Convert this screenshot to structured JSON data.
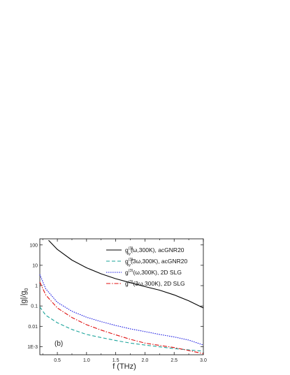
{
  "chart_data": {
    "type": "line",
    "panel_label": "(b)",
    "xlabel": "f (THz)",
    "ylabel": "|g|/g",
    "ylabel_subscript": "0",
    "xlim": [
      0.2,
      3.0
    ],
    "ylim": [
      0.0004,
      200
    ],
    "yscale": "log",
    "grid": false,
    "legend_position": "top-right",
    "x_ticks": [
      0.5,
      1.0,
      1.5,
      2.0,
      2.5,
      3.0
    ],
    "x_tick_labels": [
      "0.5",
      "1.0",
      "1.5",
      "2.0",
      "2.5",
      "3.0"
    ],
    "y_ticks": [
      0.001,
      0.01,
      0.1,
      1,
      10,
      100
    ],
    "y_tick_labels": [
      "1E-3",
      "0.01",
      "0.1",
      "1",
      "10",
      "100"
    ],
    "series": [
      {
        "legend": {
          "main": "g",
          "sup": "(3)",
          "sub": "xy",
          "rest": "(ω,300K), acGNR20"
        },
        "color": "#000000",
        "dash": "",
        "x": [
          0.35,
          0.5,
          0.75,
          1.0,
          1.25,
          1.5,
          1.75,
          2.0,
          2.25,
          2.5,
          2.75,
          3.0
        ],
        "values": [
          170,
          60,
          18,
          7.5,
          3.8,
          2.2,
          1.4,
          0.9,
          0.6,
          0.35,
          0.18,
          0.08
        ]
      },
      {
        "legend": {
          "main": "g",
          "sup": "(3)",
          "sub": "xy",
          "rest": "(3ω,300K), acGNR20"
        },
        "color": "#1aa39a",
        "dash": "5,3",
        "x": [
          0.2,
          0.3,
          0.5,
          0.75,
          1.0,
          1.25,
          1.5,
          1.75,
          2.0,
          2.5,
          3.0
        ],
        "values": [
          0.09,
          0.035,
          0.015,
          0.007,
          0.004,
          0.0028,
          0.002,
          0.0015,
          0.0012,
          0.0008,
          0.0006
        ]
      },
      {
        "legend": {
          "main": "g",
          "sup": "(3)",
          "sub": "",
          "rest": "(ω,300K), 2D SLG"
        },
        "color": "#1010e0",
        "dash": "1.5,1.5",
        "x": [
          0.2,
          0.3,
          0.5,
          0.75,
          1.0,
          1.25,
          1.5,
          1.75,
          2.0,
          2.25,
          2.5,
          2.75,
          3.0
        ],
        "values": [
          3.5,
          0.7,
          0.15,
          0.055,
          0.028,
          0.017,
          0.011,
          0.0075,
          0.0055,
          0.004,
          0.003,
          0.0021,
          0.0012
        ]
      },
      {
        "legend": {
          "main": "g",
          "sup": "(3)",
          "sub": "",
          "rest": "(3ω,300K), 2D SLG"
        },
        "color": "#e01010",
        "dash": "6,2,1.5,2",
        "x": [
          0.2,
          0.3,
          0.5,
          0.75,
          1.0,
          1.25,
          1.5,
          1.75,
          2.0,
          2.25,
          2.5,
          2.75,
          3.0
        ],
        "values": [
          1.5,
          0.35,
          0.08,
          0.027,
          0.012,
          0.0065,
          0.0038,
          0.0023,
          0.0015,
          0.00115,
          0.0009,
          0.00065,
          0.00045
        ]
      }
    ]
  }
}
